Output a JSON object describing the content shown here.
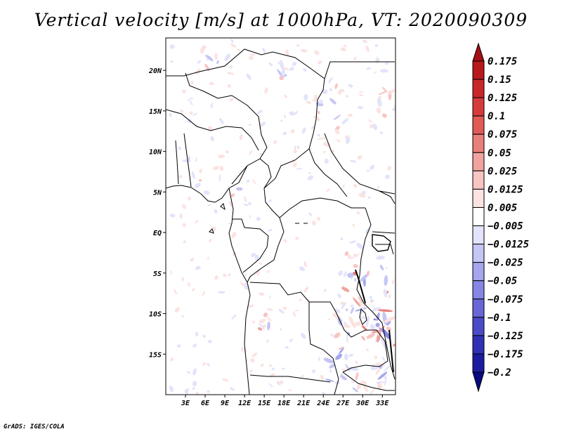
{
  "chart_data": {
    "type": "heatmap",
    "title": "Vertical velocity [m/s] at 1000hPa, VT: 2020090309",
    "variable": "Vertical velocity",
    "units": "m/s",
    "level": "1000hPa",
    "valid_time": "2020090309",
    "lon_range": [
      0,
      35
    ],
    "lat_range": [
      -20,
      24
    ],
    "x_ticks": [
      {
        "value": 3,
        "label": "3E"
      },
      {
        "value": 6,
        "label": "6E"
      },
      {
        "value": 9,
        "label": "9E"
      },
      {
        "value": 12,
        "label": "12E"
      },
      {
        "value": 15,
        "label": "15E"
      },
      {
        "value": 18,
        "label": "18E"
      },
      {
        "value": 21,
        "label": "21E"
      },
      {
        "value": 24,
        "label": "24E"
      },
      {
        "value": 27,
        "label": "27E"
      },
      {
        "value": 30,
        "label": "30E"
      },
      {
        "value": 33,
        "label": "33E"
      }
    ],
    "y_ticks": [
      {
        "value": 20,
        "label": "20N"
      },
      {
        "value": 15,
        "label": "15N"
      },
      {
        "value": 10,
        "label": "10N"
      },
      {
        "value": 5,
        "label": "5N"
      },
      {
        "value": 0,
        "label": "EQ"
      },
      {
        "value": -5,
        "label": "5S"
      },
      {
        "value": -10,
        "label": "10S"
      },
      {
        "value": -15,
        "label": "15S"
      }
    ],
    "colorbar": {
      "levels": [
        0.175,
        0.15,
        0.125,
        0.1,
        0.075,
        0.05,
        0.025,
        0.0125,
        0.005,
        -0.005,
        -0.0125,
        -0.025,
        -0.05,
        -0.075,
        -0.1,
        -0.125,
        -0.175,
        -0.2
      ],
      "labels": [
        "0.175",
        "0.15",
        "0.125",
        "0.1",
        "0.075",
        "0.05",
        "0.025",
        "0.0125",
        "0.005",
        "−0.005",
        "−0.0125",
        "−0.025",
        "−0.05",
        "−0.075",
        "−0.1",
        "−0.125",
        "−0.175",
        "−0.2"
      ],
      "colors": [
        "#a50f15",
        "#b7191c",
        "#c8282a",
        "#d63b3b",
        "#e05a56",
        "#e87f7a",
        "#f0a39e",
        "#f7c5c2",
        "#fbe3e1",
        "#ffffff",
        "#e3e3fb",
        "#c6c6f5",
        "#a6a6ee",
        "#8686e4",
        "#6767d8",
        "#4b4bc9",
        "#3131b5",
        "#1c1ca0",
        "#0a0a80"
      ]
    }
  },
  "footer": "GrADS: IGES/COLA"
}
